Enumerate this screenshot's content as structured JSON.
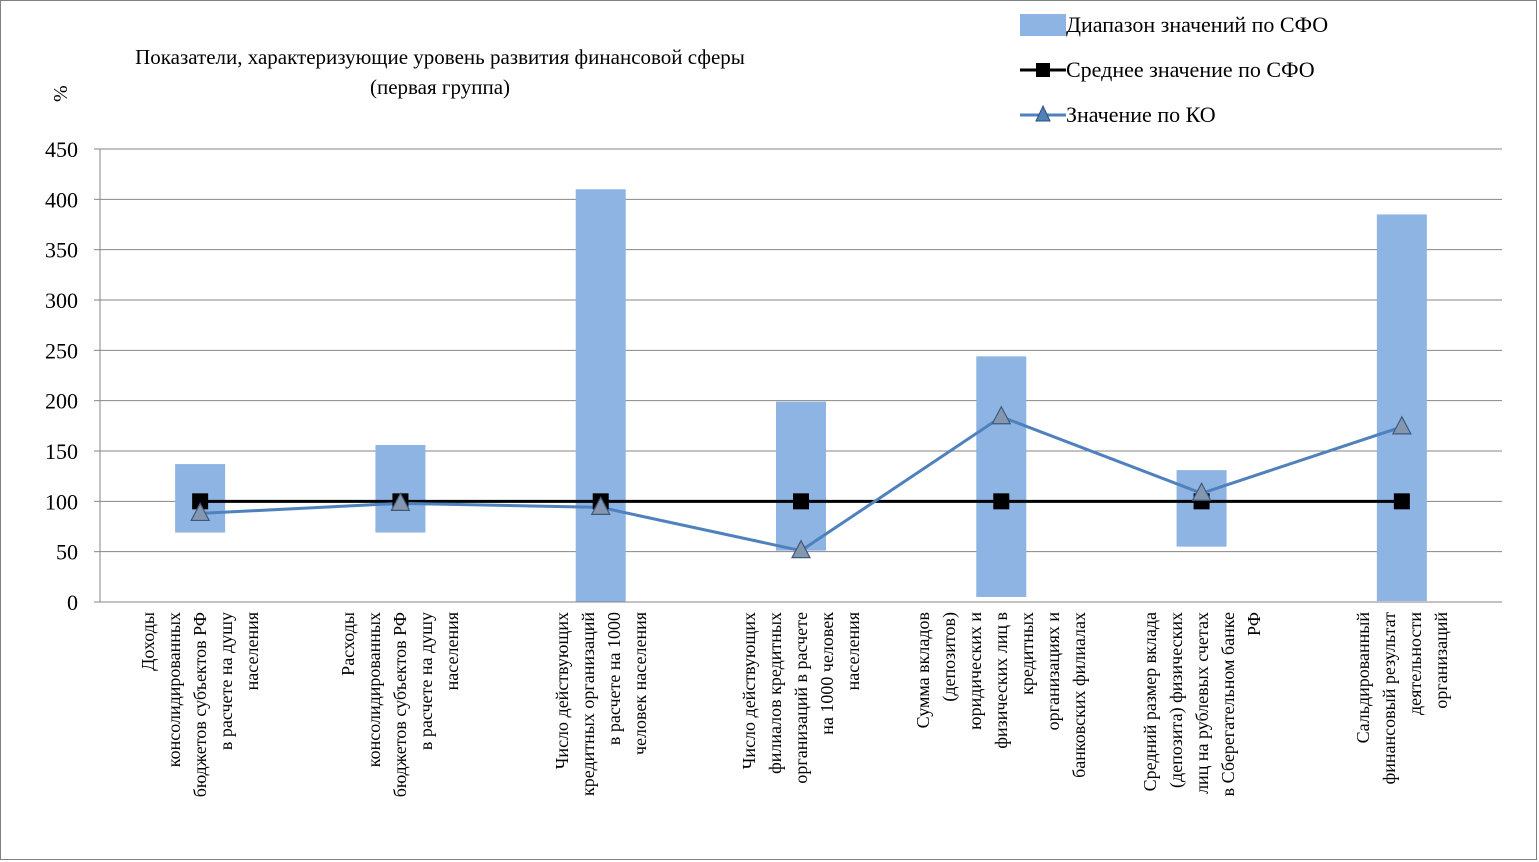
{
  "chart_data": {
    "type": "bar",
    "title": "Показатели, характеризующие уровень развития финансовой сферы (первая группа)",
    "title_lines": [
      "Показатели, характеризующие уровень развития финансовой сферы",
      "(первая группа)"
    ],
    "ylabel": "%",
    "ylim": [
      0,
      450
    ],
    "yticks": [
      0,
      50,
      100,
      150,
      200,
      250,
      300,
      350,
      400,
      450
    ],
    "grid": true,
    "legend_position": "top-right",
    "categories": [
      "Доходы консолидированных бюджетов субъектов РФ в расчете на душу населения",
      "Расходы консолидированных бюджетов субъектов РФ в расчете на душу населения",
      "Число действующих кредитных организаций в расчете на 1000 человек населения",
      "Число действующих филиалов кредитных организаций в расчете на 1000 человек населения",
      "Сумма вкладов (депозитов) юридических и физических лиц в кредитных организациях и банковских филиалах",
      "Средний размер вклада (депозита) физических лиц на рублевых счетах в Сберегательном банке РФ",
      "Сальдированный финансовый результат деятельности организаций"
    ],
    "category_lines": [
      [
        "Доходы",
        "консолидированных",
        "бюджетов субъектов РФ",
        "в расчете на душу",
        "населения"
      ],
      [
        "Расходы",
        "консолидированных",
        "бюджетов субъектов РФ",
        "в расчете на душу",
        "населения"
      ],
      [
        "Число действующих",
        "кредитных организаций",
        "в расчете на 1000",
        "человек населения"
      ],
      [
        "Число действующих",
        "филиалов кредитных",
        "организаций в расчете",
        "на 1000 человек",
        "населения"
      ],
      [
        "Сумма вкладов",
        "(депозитов)",
        "юридических и",
        "физических лиц в",
        "кредитных",
        "организациях и",
        "банковских филиалах"
      ],
      [
        "Средний размер вклада",
        "(депозита) физических",
        "лиц на рублевых счетах",
        "в Сберегательном банке",
        "РФ"
      ],
      [
        "Сальдированный",
        "финансовый результат",
        "деятельности",
        "организаций"
      ]
    ],
    "series": [
      {
        "name": "Диапазон значений по СФО",
        "kind": "range",
        "color": "#8eb4e3",
        "low": [
          69,
          69,
          0,
          51,
          5,
          55,
          1
        ],
        "high": [
          137,
          156,
          410,
          199,
          244,
          131,
          385
        ]
      },
      {
        "name": "Среднее значение по СФО",
        "kind": "line",
        "marker": "square",
        "color": "#000000",
        "values": [
          100,
          100,
          100,
          100,
          100,
          100,
          100
        ]
      },
      {
        "name": "Значение по КО",
        "kind": "line",
        "marker": "triangle",
        "color": "#4f81bd",
        "values": [
          88,
          98,
          94,
          51,
          184,
          108,
          174
        ]
      }
    ]
  }
}
